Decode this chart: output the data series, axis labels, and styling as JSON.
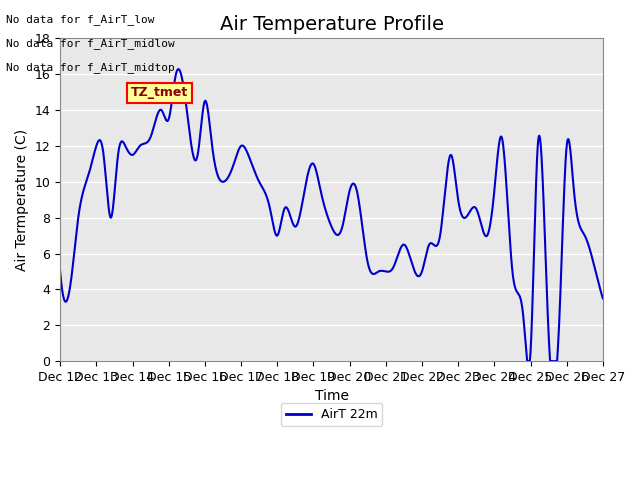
{
  "title": "Air Temperature Profile",
  "xlabel": "Time",
  "ylabel": "Air Termperature (C)",
  "line_color": "#0000CC",
  "line_width": 1.5,
  "ylim": [
    0,
    18
  ],
  "yticks": [
    0,
    2,
    4,
    6,
    8,
    10,
    12,
    14,
    16,
    18
  ],
  "x_labels": [
    "Dec 12",
    "Dec 13",
    "Dec 14",
    "Dec 15",
    "Dec 16",
    "Dec 17",
    "Dec 18",
    "Dec 19",
    "Dec 20",
    "Dec 21",
    "Dec 22",
    "Dec 23",
    "Dec 24",
    "Dec 25",
    "Dec 26",
    "Dec 27"
  ],
  "legend_label": "AirT 22m",
  "legend_line_color": "#0000CC",
  "no_data_texts": [
    "No data for f_AirT_low",
    "No data for f_AirT_midlow",
    "No data for f_AirT_midtop"
  ],
  "tz_tmet_text": "TZ_tmet",
  "background_color": "#ffffff",
  "plot_bg_color": "#e8e8e8",
  "grid_color": "#ffffff",
  "title_fontsize": 14,
  "axis_fontsize": 10,
  "tick_fontsize": 9
}
